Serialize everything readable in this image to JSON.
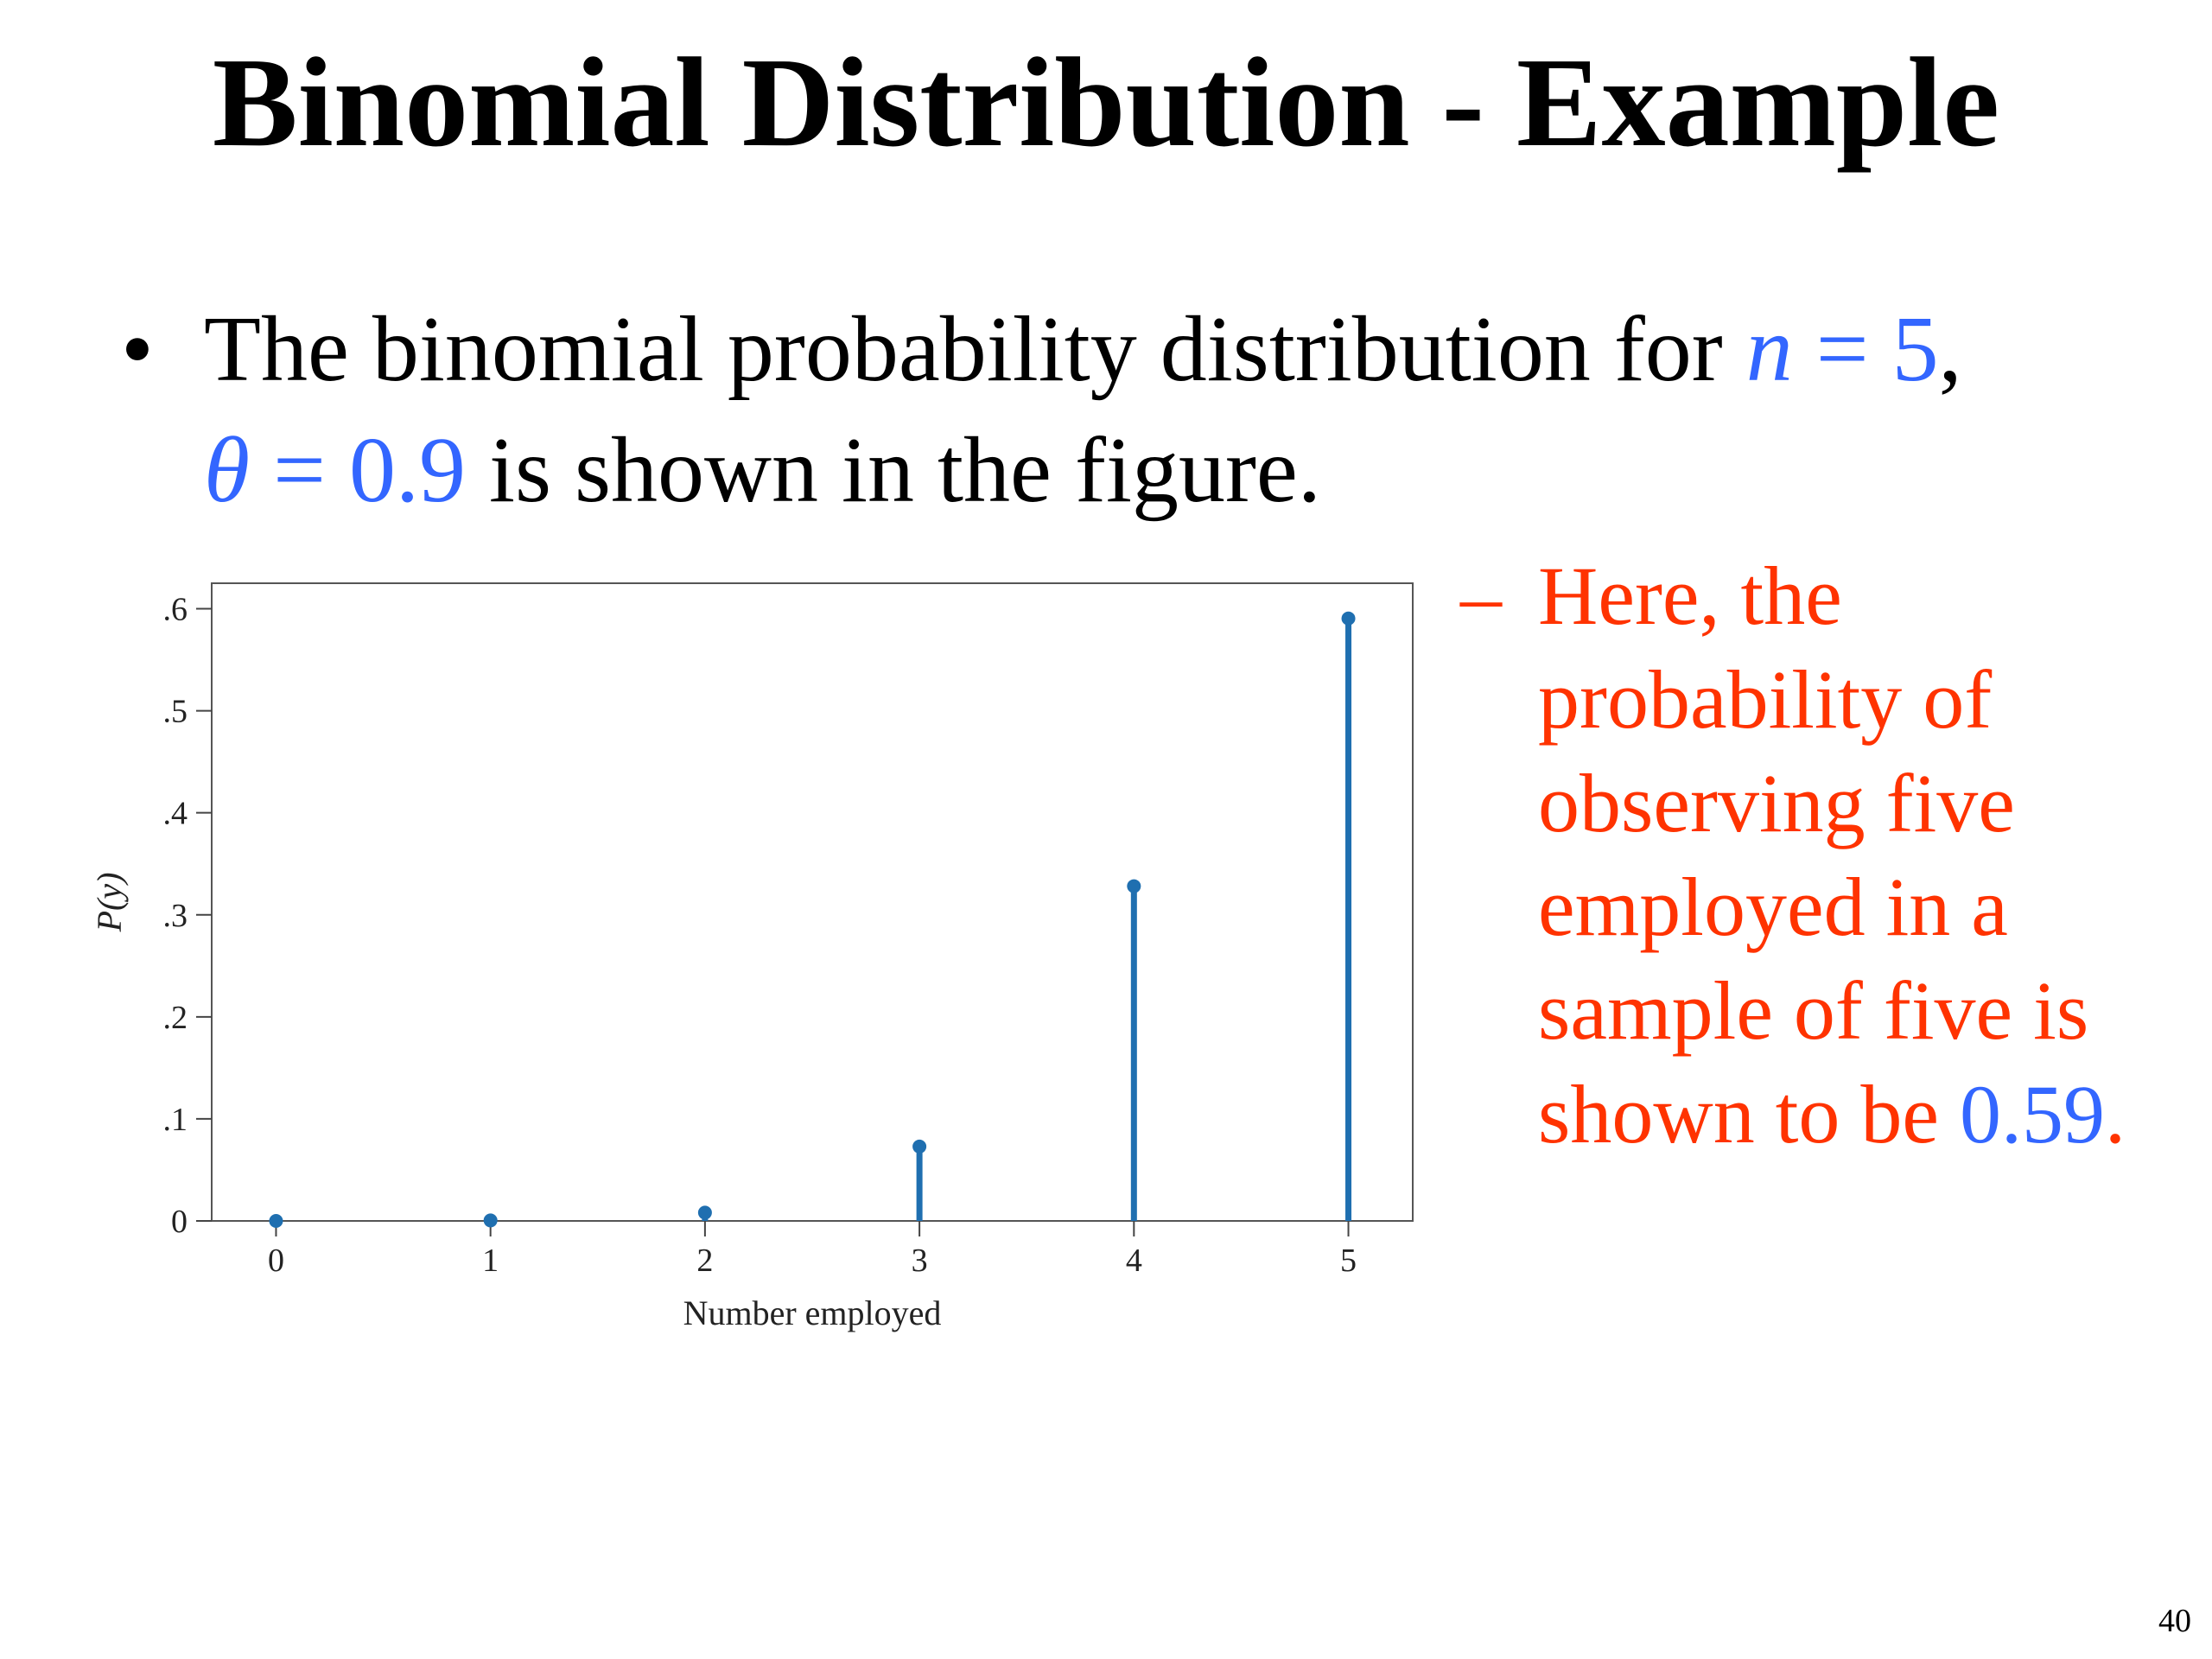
{
  "slide": {
    "title": "Binomial Distribution - Example",
    "bullet": {
      "marker": "•",
      "text_1": "The binomial probability distribution for ",
      "n_var": "n",
      "n_eq": " = 5",
      "comma": ",",
      "theta_var": "θ",
      "theta_eq": " = 0.9",
      "text_2": " is shown in the figure."
    },
    "sub_bullet": {
      "marker": "–",
      "text": "Here, the probability of observing five employed in a sample of five is shown to be ",
      "value": "0.59",
      "period": "."
    },
    "page_number": "40"
  },
  "colors": {
    "highlight_blue": "#3366ff",
    "highlight_red": "#ff3300",
    "stem": "#1f6fb0"
  },
  "chart_data": {
    "type": "stem",
    "x": [
      0,
      1,
      2,
      3,
      4,
      5
    ],
    "values": [
      1e-05,
      0.0005,
      0.0081,
      0.0729,
      0.3281,
      0.5905
    ],
    "x_tick_labels": [
      "0",
      "1",
      "2",
      "3",
      "4",
      "5"
    ],
    "y_ticks": [
      0,
      0.1,
      0.2,
      0.3,
      0.4,
      0.5,
      0.6
    ],
    "y_tick_labels": [
      "0",
      ".1",
      ".2",
      ".3",
      ".4",
      ".5",
      ".6"
    ],
    "xlabel": "Number employed",
    "ylabel": "P(y)",
    "xlim": [
      -0.3,
      5.3
    ],
    "ylim": [
      0,
      0.625
    ],
    "grid": false
  }
}
